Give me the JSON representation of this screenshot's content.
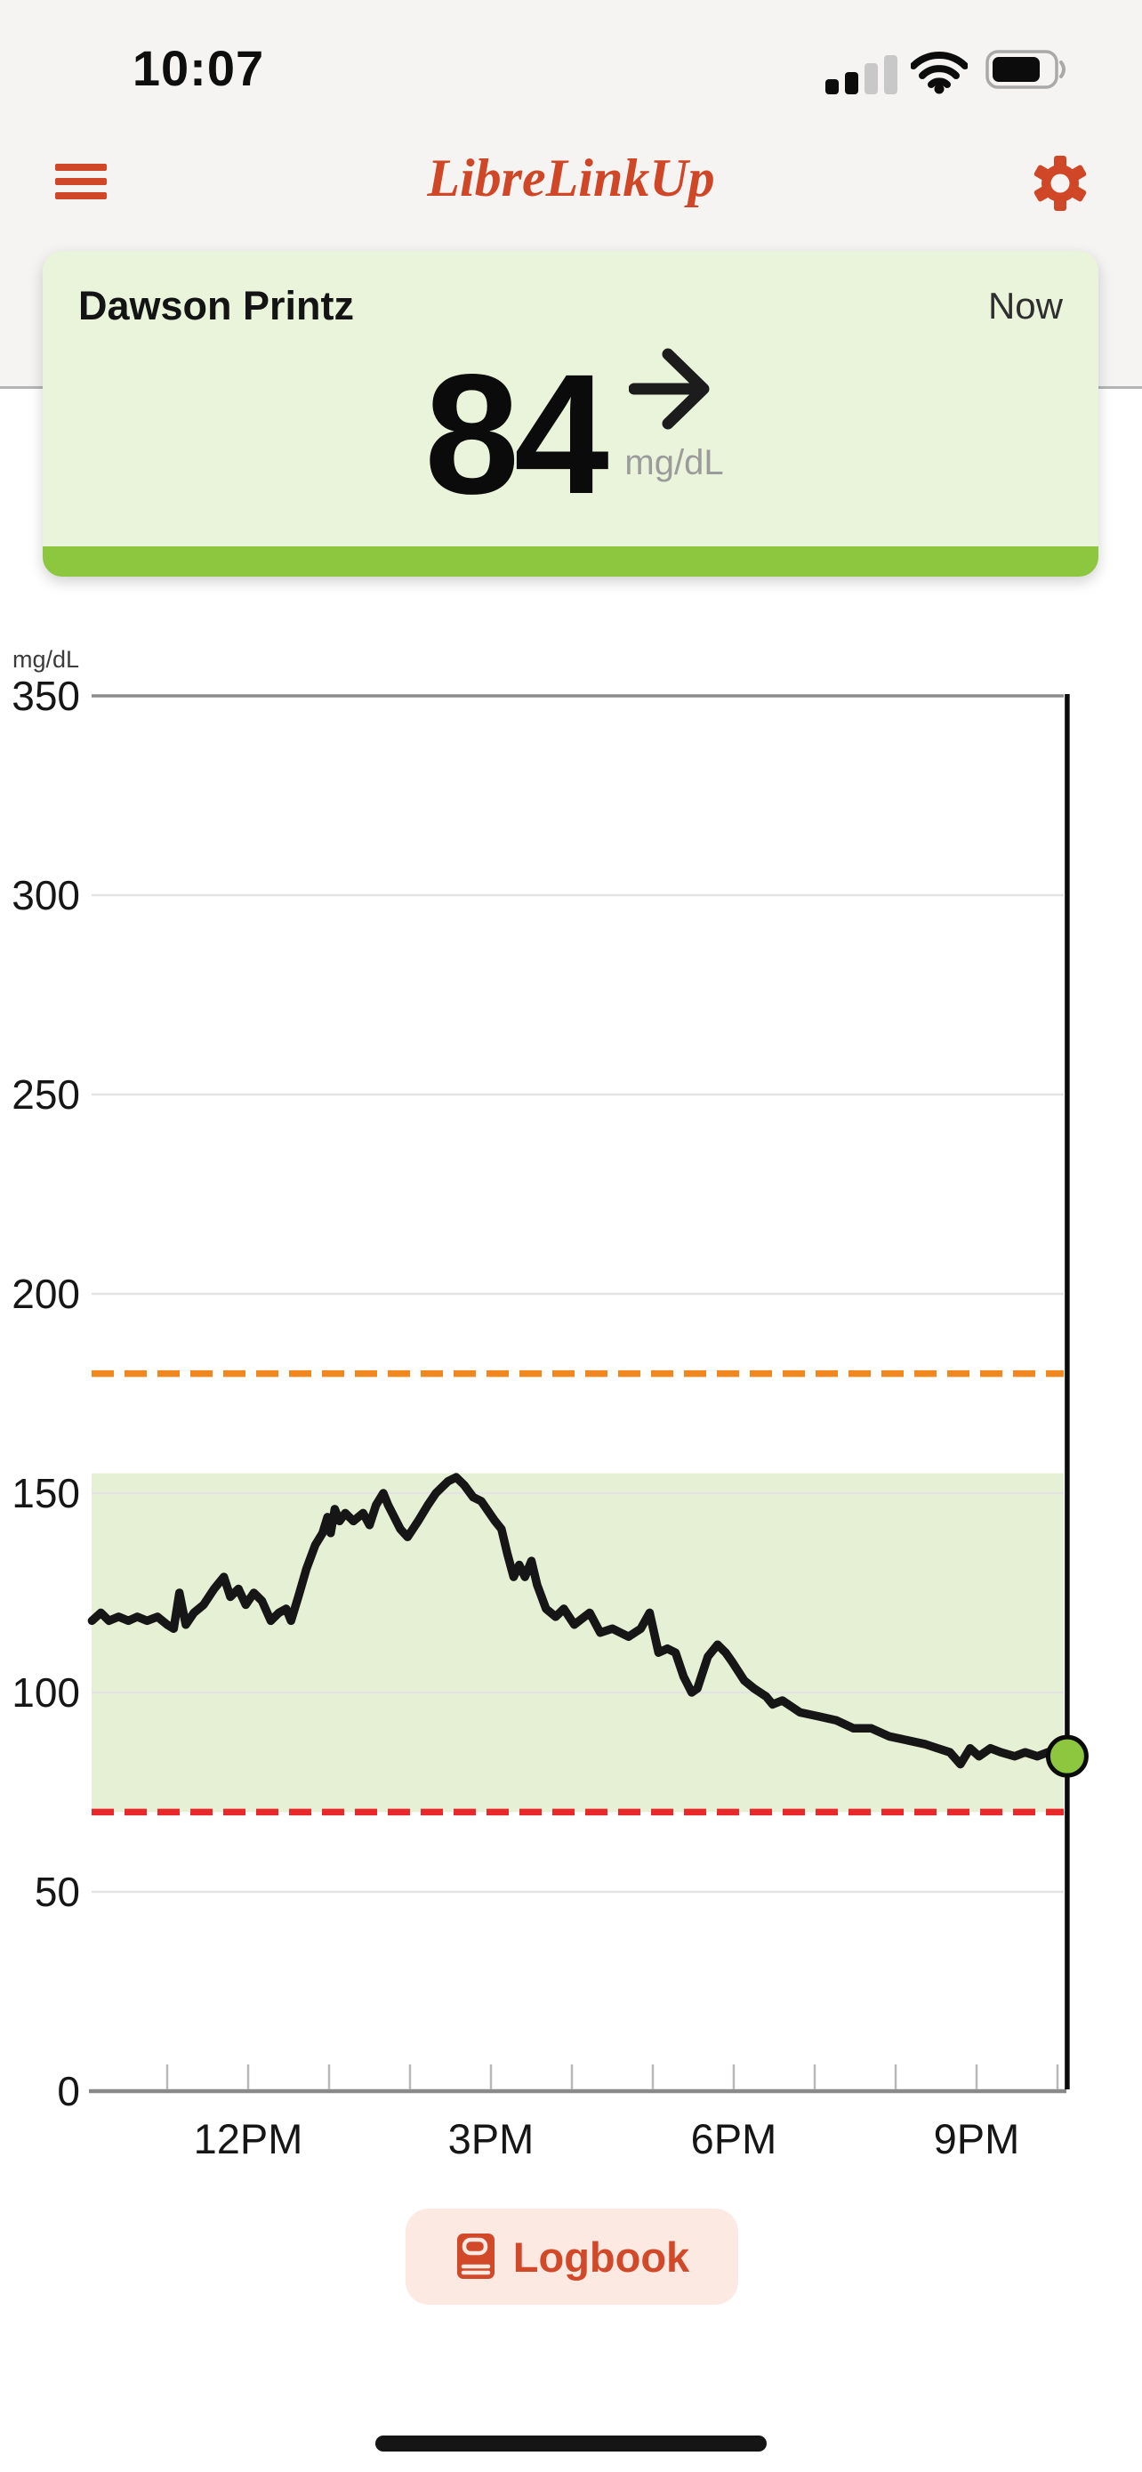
{
  "status_bar": {
    "time": "10:07",
    "signal_icon": "cellular-signal-2-of-4",
    "wifi_icon": "wifi-full",
    "battery_icon": "battery-mostly-full"
  },
  "header": {
    "title": "LibreLinkUp",
    "menu_icon": "hamburger-menu",
    "settings_icon": "gear",
    "brand_color": "#cf4727",
    "bg_color": "#f5f4f2"
  },
  "patient_card": {
    "name": "Dawson Printz",
    "timestamp_label": "Now",
    "glucose_value": "84",
    "unit": "mg/dL",
    "trend_icon": "arrow-steady-right",
    "bg_color": "#eaf4db",
    "status_color": "#8dc63f"
  },
  "chart_data": {
    "type": "line",
    "unit_label": "mg/dL",
    "ylabel": "mg/dL",
    "ylim": [
      0,
      350
    ],
    "y_ticks": [
      0,
      50,
      100,
      150,
      200,
      250,
      300,
      350
    ],
    "x_ticks": [
      {
        "hour": 12,
        "label": "12PM"
      },
      {
        "hour": 15,
        "label": "3PM"
      },
      {
        "hour": 18,
        "label": "6PM"
      },
      {
        "hour": 21,
        "label": "9PM"
      }
    ],
    "x_minor_ticks_hours": [
      11,
      12,
      13,
      14,
      15,
      16,
      17,
      18,
      19,
      20,
      21,
      22
    ],
    "xlim_hours": [
      10.07,
      22.15
    ],
    "grid_on": true,
    "high_alarm_line": {
      "value": 180,
      "color": "#f0881f",
      "style": "dashed"
    },
    "low_alarm_line": {
      "value": 70,
      "color": "#e8282b",
      "style": "dashed"
    },
    "target_band": {
      "low": 70,
      "high": 155,
      "color": "#e6f0d5"
    },
    "now_line_hour": 22.12,
    "current_point": {
      "hour": 22.12,
      "value": 84,
      "color": "#8dc63f"
    },
    "series": [
      {
        "name": "glucose",
        "color": "#161616",
        "points": [
          [
            10.07,
            118
          ],
          [
            10.18,
            120
          ],
          [
            10.28,
            118
          ],
          [
            10.4,
            119
          ],
          [
            10.52,
            118
          ],
          [
            10.63,
            119
          ],
          [
            10.75,
            118
          ],
          [
            10.88,
            119
          ],
          [
            11.0,
            117
          ],
          [
            11.08,
            116
          ],
          [
            11.15,
            125
          ],
          [
            11.23,
            117
          ],
          [
            11.33,
            120
          ],
          [
            11.45,
            122
          ],
          [
            11.58,
            126
          ],
          [
            11.7,
            129
          ],
          [
            11.78,
            124
          ],
          [
            11.88,
            126
          ],
          [
            11.97,
            122
          ],
          [
            12.07,
            125
          ],
          [
            12.17,
            123
          ],
          [
            12.28,
            118
          ],
          [
            12.38,
            120
          ],
          [
            12.47,
            121
          ],
          [
            12.53,
            118
          ],
          [
            12.62,
            124
          ],
          [
            12.72,
            131
          ],
          [
            12.83,
            137
          ],
          [
            12.92,
            140
          ],
          [
            12.98,
            144
          ],
          [
            13.02,
            140
          ],
          [
            13.07,
            146
          ],
          [
            13.13,
            143
          ],
          [
            13.2,
            145
          ],
          [
            13.3,
            143
          ],
          [
            13.42,
            145
          ],
          [
            13.5,
            142
          ],
          [
            13.58,
            147
          ],
          [
            13.67,
            150
          ],
          [
            13.73,
            147
          ],
          [
            13.78,
            145
          ],
          [
            13.88,
            141
          ],
          [
            13.97,
            139
          ],
          [
            14.1,
            143
          ],
          [
            14.22,
            147
          ],
          [
            14.32,
            150
          ],
          [
            14.47,
            153
          ],
          [
            14.57,
            154
          ],
          [
            14.67,
            152
          ],
          [
            14.78,
            149
          ],
          [
            14.88,
            148
          ],
          [
            15.05,
            143
          ],
          [
            15.13,
            141
          ],
          [
            15.2,
            135
          ],
          [
            15.28,
            129
          ],
          [
            15.35,
            132
          ],
          [
            15.42,
            129
          ],
          [
            15.5,
            133
          ],
          [
            15.57,
            127
          ],
          [
            15.68,
            121
          ],
          [
            15.8,
            119
          ],
          [
            15.9,
            121
          ],
          [
            16.03,
            117
          ],
          [
            16.22,
            120
          ],
          [
            16.35,
            115
          ],
          [
            16.5,
            116
          ],
          [
            16.7,
            114
          ],
          [
            16.85,
            116
          ],
          [
            16.96,
            120
          ],
          [
            17.07,
            110
          ],
          [
            17.18,
            111
          ],
          [
            17.28,
            110
          ],
          [
            17.38,
            104
          ],
          [
            17.48,
            100
          ],
          [
            17.55,
            101
          ],
          [
            17.68,
            109
          ],
          [
            17.8,
            112
          ],
          [
            17.9,
            110
          ],
          [
            17.97,
            108
          ],
          [
            18.13,
            103
          ],
          [
            18.25,
            101
          ],
          [
            18.4,
            99
          ],
          [
            18.48,
            97
          ],
          [
            18.6,
            98
          ],
          [
            18.82,
            95
          ],
          [
            19.05,
            94
          ],
          [
            19.27,
            93
          ],
          [
            19.48,
            91
          ],
          [
            19.7,
            91
          ],
          [
            19.92,
            89
          ],
          [
            20.15,
            88
          ],
          [
            20.37,
            87
          ],
          [
            20.52,
            86
          ],
          [
            20.67,
            85
          ],
          [
            20.8,
            82
          ],
          [
            20.92,
            86
          ],
          [
            21.03,
            84
          ],
          [
            21.17,
            86
          ],
          [
            21.3,
            85
          ],
          [
            21.47,
            84
          ],
          [
            21.6,
            85
          ],
          [
            21.75,
            84
          ],
          [
            21.88,
            85
          ],
          [
            22.0,
            84
          ],
          [
            22.1,
            84
          ]
        ]
      }
    ]
  },
  "logbook_button": {
    "label": "Logbook",
    "icon": "book",
    "text_color": "#d2492a",
    "bg_color": "#fbe9e2"
  },
  "home_indicator_icon": "home-indicator-bar"
}
